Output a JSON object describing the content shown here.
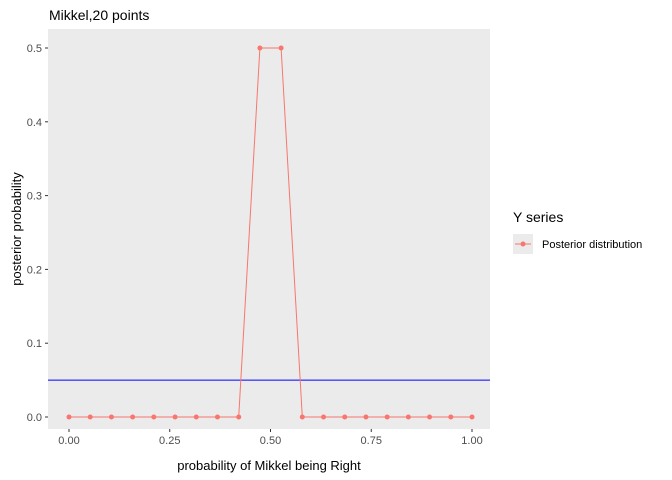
{
  "chart_data": {
    "type": "line",
    "title": "Mikkel,20 points",
    "xlabel": "probability of Mikkel being Right",
    "ylabel": "posterior probability",
    "xlim": [
      0,
      1
    ],
    "ylim": [
      0,
      0.5
    ],
    "x_ticks": [
      0,
      0.25,
      0.5,
      0.75,
      1
    ],
    "x_tick_labels": [
      "0.00",
      "0.25",
      "0.50",
      "0.75",
      "1.00"
    ],
    "y_ticks": [
      0,
      0.1,
      0.2,
      0.3,
      0.4,
      0.5
    ],
    "y_tick_labels": [
      "0.0",
      "0.1",
      "0.2",
      "0.3",
      "0.4",
      "0.5"
    ],
    "grid": false,
    "legend": {
      "title": "Y series",
      "position": "right"
    },
    "series": [
      {
        "name": "Posterior distribution",
        "color": "#F8766D",
        "x": [
          0,
          0.0526,
          0.1053,
          0.1579,
          0.2105,
          0.2632,
          0.3158,
          0.3684,
          0.4211,
          0.4737,
          0.5263,
          0.5789,
          0.6316,
          0.6842,
          0.7368,
          0.7895,
          0.8421,
          0.8947,
          0.9474,
          1
        ],
        "y": [
          0,
          0,
          0,
          0,
          0,
          0,
          0,
          0,
          0,
          0.5,
          0.5,
          0,
          0,
          0,
          0,
          0,
          0,
          0,
          0,
          0
        ]
      }
    ],
    "hline": {
      "y": 0.05,
      "color": "#0000FF"
    }
  }
}
